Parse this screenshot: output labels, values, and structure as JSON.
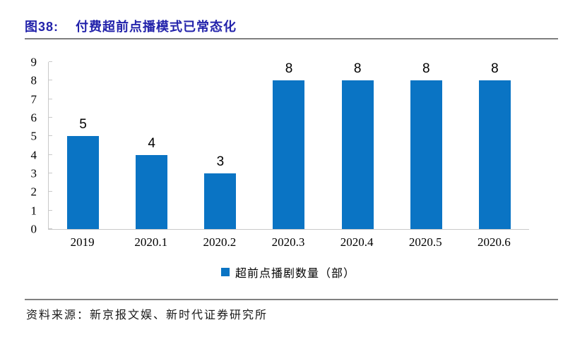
{
  "header": {
    "figure_label": "图38:",
    "title": "付费超前点播模式已常态化"
  },
  "chart_data": {
    "type": "bar",
    "categories": [
      "2019",
      "2020.1",
      "2020.2",
      "2020.3",
      "2020.4",
      "2020.5",
      "2020.6"
    ],
    "values": [
      5,
      4,
      3,
      8,
      8,
      8,
      8
    ],
    "title": "付费超前点播模式已常态化",
    "xlabel": "",
    "ylabel": "",
    "ylim": [
      0,
      9
    ],
    "ytick_step": 1,
    "grid": false,
    "data_labels": true,
    "legend": "超前点播剧数量（部）",
    "legend_position": "bottom",
    "bar_color": "#0a74c4"
  },
  "colors": {
    "title_text": "#2323ab",
    "axis_line": "#c9c9c9",
    "divider": "#7f7f7f",
    "bar": "#0a74c4"
  },
  "footer": {
    "source": "资料来源：新京报文娱、新时代证券研究所"
  }
}
